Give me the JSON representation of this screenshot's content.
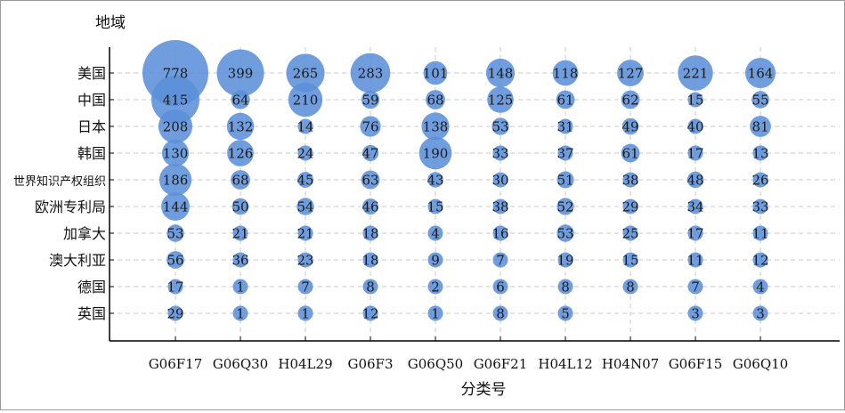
{
  "chart_data": {
    "type": "bubble",
    "ylabel": "地域",
    "xlabel": "分类号",
    "categories": [
      "G06F17",
      "G06Q30",
      "H04L29",
      "G06F3",
      "G06Q50",
      "G06F21",
      "H04L12",
      "H04N07",
      "G06F15",
      "G06Q10"
    ],
    "rows": [
      "美国",
      "中国",
      "日本",
      "韩国",
      "世界知识产权组织",
      "欧洲专利局",
      "加拿大",
      "澳大利亚",
      "德国",
      "英国"
    ],
    "values": [
      [
        778,
        399,
        265,
        283,
        101,
        148,
        118,
        127,
        221,
        164
      ],
      [
        415,
        64,
        210,
        59,
        68,
        125,
        61,
        62,
        15,
        55
      ],
      [
        208,
        132,
        14,
        76,
        138,
        53,
        31,
        49,
        40,
        81
      ],
      [
        130,
        126,
        24,
        47,
        190,
        33,
        37,
        61,
        17,
        13
      ],
      [
        186,
        68,
        45,
        63,
        43,
        30,
        51,
        38,
        48,
        26
      ],
      [
        144,
        50,
        54,
        46,
        15,
        38,
        52,
        29,
        34,
        33
      ],
      [
        53,
        21,
        21,
        18,
        4,
        16,
        53,
        25,
        17,
        11
      ],
      [
        56,
        36,
        23,
        18,
        9,
        7,
        19,
        15,
        11,
        12
      ],
      [
        17,
        1,
        7,
        8,
        2,
        6,
        8,
        8,
        7,
        4
      ],
      [
        29,
        1,
        1,
        12,
        1,
        8,
        5,
        null,
        3,
        3
      ]
    ],
    "grid": true,
    "bubble_color": "#5b8fd9"
  }
}
